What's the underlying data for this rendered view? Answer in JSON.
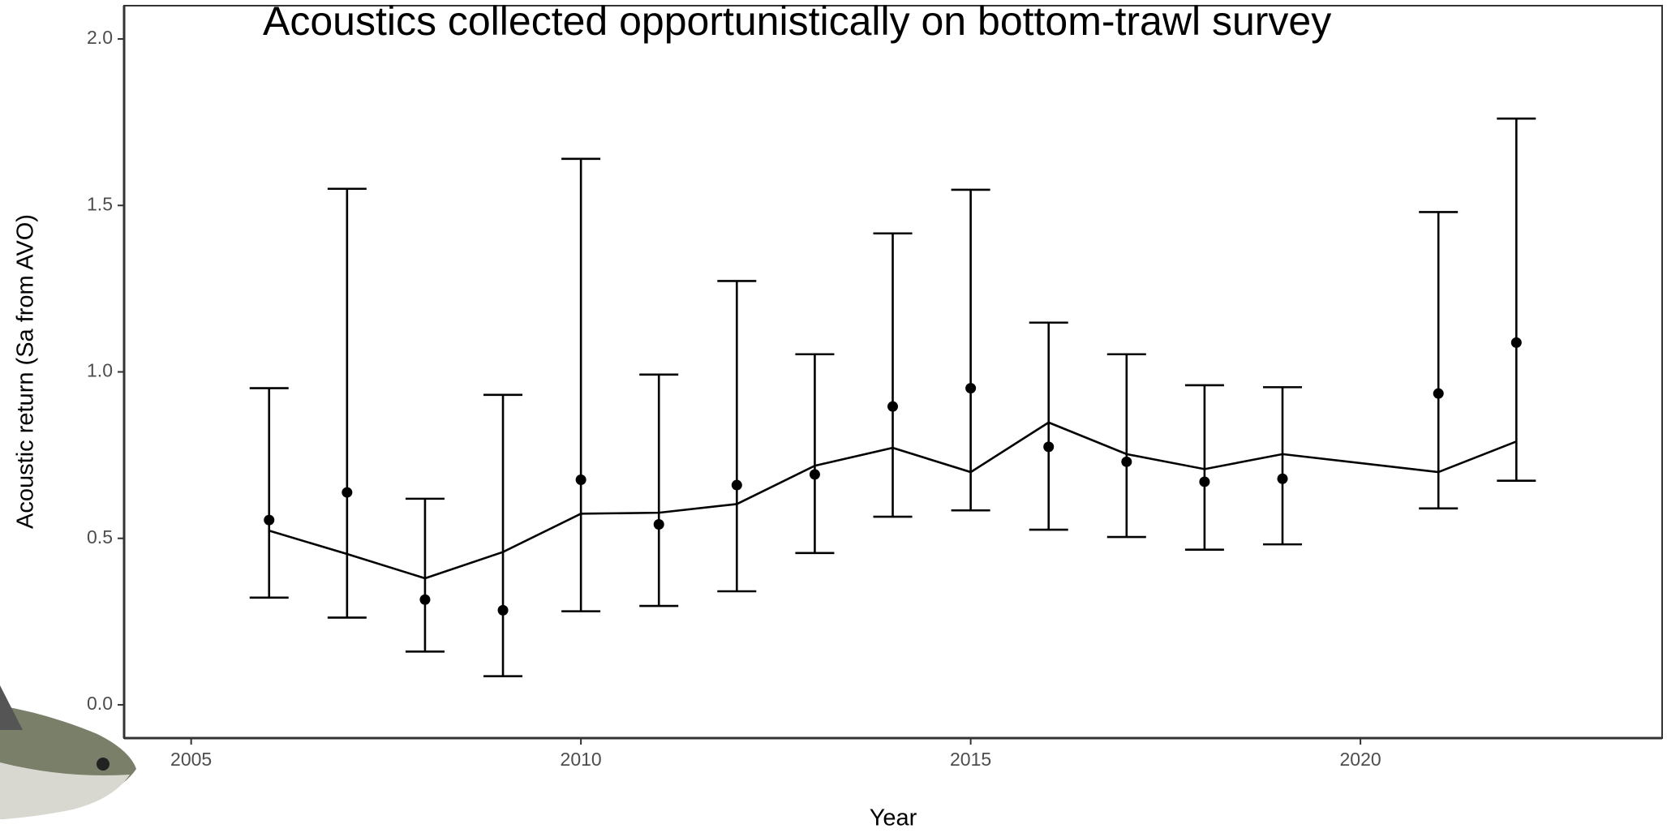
{
  "chart_data": {
    "type": "errorbar",
    "title": "Acoustics collected opportunistically on bottom-trawl survey",
    "x_label": "Year",
    "y_label": "Acoustic return (Sa from AVO)",
    "x": [
      2006,
      2007,
      2008,
      2009,
      2010,
      2011,
      2012,
      2013,
      2014,
      2015,
      2016,
      2017,
      2018,
      2019,
      2021,
      2022
    ],
    "values": [
      0.555,
      0.638,
      0.316,
      0.284,
      0.676,
      0.542,
      0.66,
      0.692,
      0.896,
      0.951,
      0.775,
      0.73,
      0.67,
      0.679,
      0.935,
      1.088
    ],
    "lower": [
      0.322,
      0.262,
      0.16,
      0.086,
      0.281,
      0.297,
      0.341,
      0.456,
      0.565,
      0.584,
      0.526,
      0.504,
      0.466,
      0.482,
      0.59,
      0.673
    ],
    "upper": [
      0.951,
      1.55,
      0.619,
      0.931,
      1.64,
      0.992,
      1.273,
      1.053,
      1.416,
      1.547,
      1.148,
      1.053,
      0.96,
      0.954,
      1.48,
      1.761
    ],
    "line_values": [
      0.523,
      0.453,
      0.38,
      0.459,
      0.574,
      0.577,
      0.603,
      0.718,
      0.772,
      0.699,
      0.848,
      0.753,
      0.708,
      0.753,
      0.699,
      0.791
    ],
    "color": "#000000",
    "xlim": [
      2004.14,
      2023.87
    ],
    "xticks": [
      2005,
      2010,
      2015,
      2020
    ],
    "ylim": [
      -0.1,
      2.1
    ],
    "yticks": [
      {
        "value": 0,
        "label": "0.0"
      },
      {
        "value": 0.5,
        "label": "0.5"
      },
      {
        "value": 1,
        "label": "1.0"
      },
      {
        "value": 1.5,
        "label": "1.5"
      },
      {
        "value": 2,
        "label": "2.0"
      }
    ],
    "grid": false
  }
}
